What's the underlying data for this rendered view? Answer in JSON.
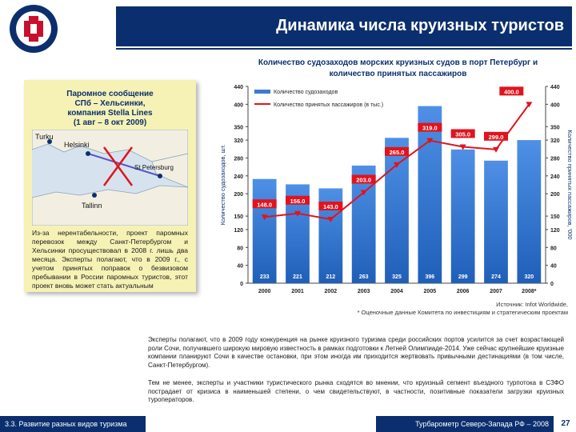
{
  "header": {
    "title": "Динамика числа круизных туристов",
    "logo_text": "ASSOCIATION OF NORTH-WEST"
  },
  "note": {
    "title_lines": [
      "Паромное сообщение",
      "СПб – Хельсинки,",
      "компания Stella Lines",
      "(1 авг – 8 окт 2009)"
    ],
    "map_labels": {
      "turku": "Turku",
      "helsinki": "Helsinki",
      "spb": "St Petersburg",
      "tallinn": "Tallinn"
    },
    "text": "Из-за нерентабельности, проект паромных перевозок между Санкт-Петербургом и Хельсинки просуществовал в 2008 г. лишь два месяца. Эксперты полагают, что в 2009 г., с учетом принятых поправок о безвизовом пребывании в России паромных туристов, этот проект вновь может стать актуальным"
  },
  "chart_data": {
    "type": "bar",
    "title": "Количество судозаходов морских круизных судов в порт Петербург и количество принятых пассажиров",
    "categories": [
      "2000",
      "2001",
      "2002",
      "2003",
      "2004",
      "2005",
      "2006",
      "2007",
      "2008*"
    ],
    "series": [
      {
        "name": "Количество судозаходов",
        "type": "bar",
        "values": [
          233,
          221,
          212,
          263,
          325,
          396,
          299,
          274,
          320
        ],
        "color": "#3a7bd5"
      },
      {
        "name": "Количество принятых пассажиров (в тыс.)",
        "type": "line",
        "values": [
          148.0,
          156.0,
          143.0,
          203.0,
          265.0,
          319.0,
          305.0,
          299.0,
          400.0
        ],
        "color": "#e0141e"
      }
    ],
    "ylabel": "Количество судозаходов, шт.",
    "y2label": "Количество принятых пассажиров, '000",
    "ylim": [
      0,
      440
    ],
    "yticks": [
      0,
      40,
      80,
      120,
      150,
      200,
      240,
      280,
      320,
      350,
      400,
      440
    ],
    "y2ticks": [
      0,
      40,
      80,
      120,
      150,
      200,
      240,
      280,
      320,
      350,
      400,
      440
    ],
    "legend": "top-left",
    "grid": false
  },
  "source": {
    "line1": "Источник: Infot Worldwide,",
    "line2": "* Оценочные данные Комитета по инвестициям и стратегическим проектам"
  },
  "paragraphs": [
    "Эксперты полагают, что в 2009 году конкуренция на рынке круизного туризма среди российских портов усилится за счет возрастающей роли Сочи, получившего широкую мировую известность в рамках подготовки к Летней Олимпиаде-2014. Уже сейчас крупнейшие круизные компании планируют Сочи в качестве остановки, при этом иногда им приходится жертвовать привычными дестинациями (в том числе, Санкт-Петербургом).",
    "Тем не менее, эксперты и участники туристического рынка сходятся во мнении, что круизный сегмент въездного турпотока в СЗФО пострадает от кризиса в наименьшей степени, о чем свидетельствуют, в частности, позитивные показатели загрузки круизных туроператоров."
  ],
  "footer": {
    "left": "3.3. Развитие разных видов туризма",
    "right": "Турбарометр Северо-Запада РФ – 2008",
    "page": "27"
  }
}
